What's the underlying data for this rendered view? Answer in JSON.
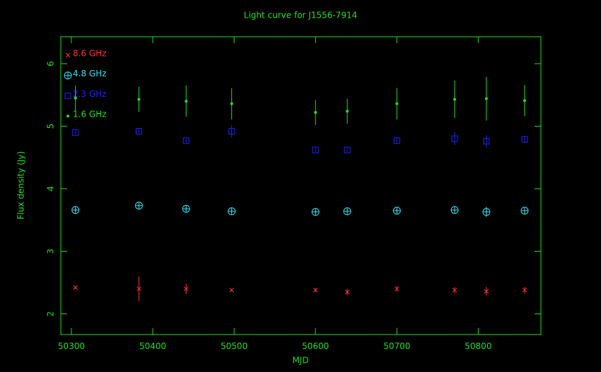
{
  "chart_data": {
    "type": "scatter",
    "title": "Light curve for J1556-7914",
    "x_label": "MJD",
    "y_label": "Flux density (Jy)",
    "x": [
      50305,
      50383,
      50441,
      50497,
      50600,
      50639,
      50700,
      50771,
      50810,
      50857
    ],
    "series": [
      {
        "name": "8.6 GHz",
        "color": "#ff3030",
        "marker": "x",
        "values": [
          2.42,
          2.4,
          2.4,
          2.38,
          2.38,
          2.35,
          2.4,
          2.38,
          2.36,
          2.38
        ],
        "errors": [
          0.02,
          0.2,
          0.08,
          0.02,
          0.03,
          0.05,
          0.04,
          0.05,
          0.07,
          0.05
        ]
      },
      {
        "name": "4.8 GHz",
        "color": "#30e0f0",
        "marker": "circle-plus",
        "values": [
          3.66,
          3.73,
          3.68,
          3.64,
          3.63,
          3.64,
          3.65,
          3.66,
          3.63,
          3.65
        ],
        "errors": [
          0.03,
          0.05,
          0.03,
          0.03,
          0.03,
          0.03,
          0.03,
          0.03,
          0.08,
          0.03
        ]
      },
      {
        "name": "2.3 GHz",
        "color": "#2020ff",
        "marker": "square",
        "values": [
          4.9,
          4.92,
          4.77,
          4.92,
          4.62,
          4.62,
          4.77,
          4.8,
          4.76,
          4.79
        ],
        "errors": [
          0.03,
          0.03,
          0.03,
          0.1,
          0.03,
          0.03,
          0.05,
          0.1,
          0.1,
          0.05
        ]
      },
      {
        "name": "1.6 GHz",
        "color": "#20e020",
        "marker": "dot",
        "values": [
          5.45,
          5.43,
          5.4,
          5.36,
          5.22,
          5.24,
          5.36,
          5.43,
          5.44,
          5.41
        ],
        "errors": [
          0.2,
          0.2,
          0.25,
          0.25,
          0.2,
          0.2,
          0.25,
          0.3,
          0.35,
          0.25
        ]
      }
    ],
    "xlim": [
      50287,
      50877
    ],
    "xticks": [
      50300,
      50400,
      50500,
      50600,
      50700,
      50800
    ],
    "ylim": [
      1.67,
      6.43
    ],
    "yticks": [
      2,
      3,
      4,
      5,
      6
    ],
    "axis_color": "#20e020",
    "legend": "upper left"
  }
}
